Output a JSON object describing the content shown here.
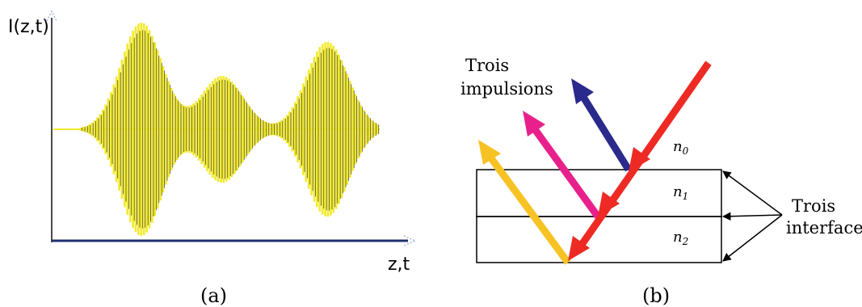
{
  "panel_a": {
    "y_axis_label": "I(z,t)",
    "x_axis_label": "z,t",
    "caption": "(a)",
    "signal_color": "#f2ea2a",
    "pulses": [
      {
        "center": 175,
        "amplitude": 1.0
      },
      {
        "center": 275,
        "amplitude": 0.5
      },
      {
        "center": 405,
        "amplitude": 0.82
      }
    ]
  },
  "panel_b": {
    "caption": "(b)",
    "label_pulses": [
      "Trois",
      "impulsions"
    ],
    "label_interfaces": [
      "Trois",
      "interfaces"
    ],
    "indices": [
      {
        "base": "n",
        "sub": "0"
      },
      {
        "base": "n",
        "sub": "1"
      },
      {
        "base": "n",
        "sub": "2"
      }
    ],
    "colors": {
      "incident": "#ee2a24",
      "reflection_1": "#2a2a8c",
      "reflection_2": "#e8208c",
      "reflection_3": "#f7c223"
    }
  }
}
